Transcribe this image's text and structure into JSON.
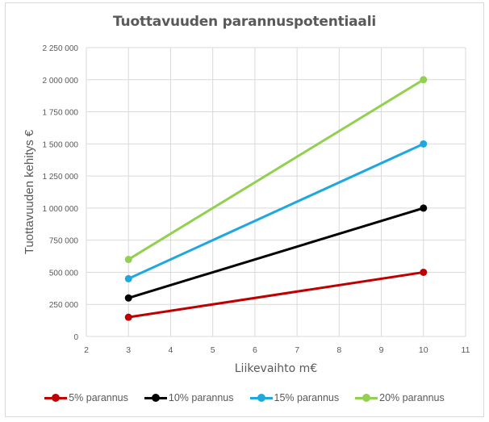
{
  "chart_data": {
    "type": "line",
    "title": "Tuottavuuden parannuspotentiaali",
    "xlabel": "Liikevaihto m€",
    "ylabel": "Tuottavuuden kehitys €",
    "xlim": [
      2,
      11
    ],
    "ylim": [
      0,
      2250000
    ],
    "x_ticks": [
      "2",
      "3",
      "4",
      "5",
      "6",
      "7",
      "8",
      "9",
      "10",
      "11"
    ],
    "y_ticks": [
      "0",
      "250 000",
      "500 000",
      "750 000",
      "1 000 000",
      "1 250 000",
      "1 500 000",
      "1 750 000",
      "2 000 000",
      "2 250 000"
    ],
    "grid": true,
    "legend_position": "bottom",
    "x": [
      3,
      10
    ],
    "series": [
      {
        "name": "5% parannus",
        "color": "#C00000",
        "values": [
          150000,
          500000
        ]
      },
      {
        "name": "10% parannus",
        "color": "#000000",
        "values": [
          300000,
          1000000
        ]
      },
      {
        "name": "15% parannus",
        "color": "#1FA7E0",
        "values": [
          450000,
          1500000
        ]
      },
      {
        "name": "20% parannus",
        "color": "#92D050",
        "values": [
          600000,
          2000000
        ]
      }
    ]
  }
}
